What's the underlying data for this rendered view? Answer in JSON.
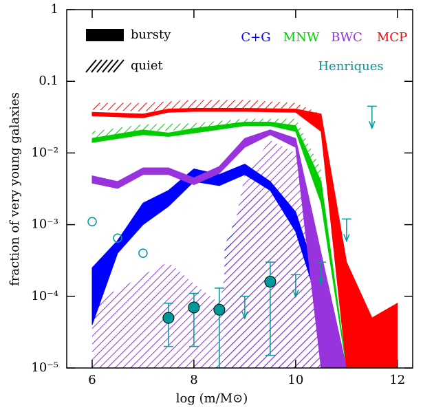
{
  "chart_data": {
    "type": "band",
    "xlabel": "log (m/M⊙)",
    "ylabel": "fraction of very young galaxies",
    "xlim": [
      5.5,
      12.3
    ],
    "xticks": [
      6,
      8,
      10,
      12
    ],
    "ylim": [
      1e-05,
      1
    ],
    "log_y": true,
    "yticks": [
      1,
      0.1,
      {
        "value": 0.01,
        "label": "10⁻²"
      },
      {
        "value": 0.001,
        "label": "10⁻³"
      },
      {
        "value": 0.0001,
        "label": "10⁻⁴"
      },
      {
        "value": 1e-05,
        "label": "10⁻⁵"
      }
    ],
    "legend": {
      "bursty": "bursty",
      "quiet": "quiet"
    },
    "series": [
      {
        "name": "C+G",
        "color": "#0000ff",
        "x": [
          6,
          6.5,
          7,
          7.5,
          8,
          8.5,
          9,
          9.5,
          10,
          10.4
        ],
        "high": [
          0.00025,
          0.0006,
          0.002,
          0.003,
          0.006,
          0.005,
          0.007,
          0.004,
          0.0015,
          0.0002
        ],
        "low": [
          4e-05,
          0.0004,
          0.001,
          0.0018,
          0.004,
          0.0035,
          0.005,
          0.003,
          0.0008,
          0.0001
        ],
        "quiet_x": [
          8.6,
          9,
          9.3,
          10,
          10.5
        ],
        "quiet_high": [
          0.0005,
          0.0025,
          0.003,
          0.0008,
          0.0001
        ],
        "quiet_low": [
          1e-05,
          1e-05,
          1e-05,
          1e-05,
          1e-05
        ]
      },
      {
        "name": "MNW",
        "color": "#00cc00",
        "x": [
          6,
          7,
          7.5,
          8,
          9,
          9.5,
          10,
          10.5,
          11
        ],
        "high": [
          0.016,
          0.021,
          0.019,
          0.022,
          0.027,
          0.027,
          0.024,
          0.004,
          1e-05
        ],
        "low": [
          0.014,
          0.018,
          0.017,
          0.019,
          0.024,
          0.024,
          0.02,
          0.002,
          1e-05
        ],
        "quiet_x": [
          6,
          7,
          8,
          9,
          10,
          10.5
        ],
        "quiet_high": [
          0.02,
          0.025,
          0.026,
          0.03,
          0.03,
          0.006
        ],
        "quiet_low": [
          0.016,
          0.02,
          0.021,
          0.026,
          0.023,
          0.004
        ]
      },
      {
        "name": "BWC",
        "color": "#9933dd",
        "x": [
          6,
          6.5,
          7,
          7.5,
          8,
          8.5,
          9,
          9.5,
          10,
          10.5,
          11
        ],
        "high": [
          0.0048,
          0.004,
          0.0062,
          0.0062,
          0.0045,
          0.0065,
          0.016,
          0.021,
          0.016,
          0.0004,
          1e-05
        ],
        "low": [
          0.0038,
          0.0032,
          0.005,
          0.005,
          0.0036,
          0.0052,
          0.012,
          0.018,
          0.012,
          1e-05,
          1e-05
        ],
        "quiet_x": [
          6,
          6.5,
          7,
          7.5,
          8,
          8.5,
          9,
          9.5,
          10,
          10.5
        ],
        "quiet_high": [
          0.0001,
          0.00012,
          0.0002,
          0.0003,
          0.00015,
          8e-05,
          0.005,
          0.015,
          0.01,
          0.0003
        ],
        "quiet_low": [
          1e-05,
          1e-05,
          1e-05,
          1e-05,
          1e-05,
          1e-05,
          1e-05,
          1e-05,
          1e-05,
          1e-05
        ]
      },
      {
        "name": "MCP",
        "color": "#ff0000",
        "x": [
          6,
          7,
          7.5,
          8,
          9,
          10,
          10.5,
          11,
          11.5,
          12
        ],
        "high": [
          0.037,
          0.035,
          0.041,
          0.042,
          0.042,
          0.041,
          0.035,
          0.0003,
          5e-05,
          8e-05
        ],
        "low": [
          0.033,
          0.031,
          0.037,
          0.038,
          0.038,
          0.037,
          0.02,
          1e-05,
          1e-05,
          1e-05
        ],
        "quiet_x": [
          6,
          7,
          8,
          9,
          10,
          10.5
        ],
        "quiet_high": [
          0.05,
          0.05,
          0.055,
          0.055,
          0.05,
          0.035
        ],
        "quiet_low": [
          0.04,
          0.038,
          0.042,
          0.042,
          0.042,
          0.03
        ]
      }
    ],
    "henriques": {
      "name": "Henriques",
      "color": "#009999",
      "open_x": [
        6,
        6.5,
        7
      ],
      "open_values": [
        0.0011,
        0.00065,
        0.0004
      ],
      "filled_x": [
        7.5,
        8,
        8.5,
        9.5
      ],
      "filled_values": [
        5e-05,
        7e-05,
        6.5e-05,
        0.00016
      ],
      "filled_low": [
        2e-05,
        2e-05,
        1e-05,
        1.5e-05
      ],
      "filled_high": [
        8e-05,
        0.00011,
        0.00013,
        0.0003
      ],
      "limit_x": [
        9,
        10,
        10.5,
        11,
        11.5
      ],
      "limit_values": [
        0.0001,
        0.0002,
        0.0003,
        0.0012,
        0.045
      ]
    }
  }
}
